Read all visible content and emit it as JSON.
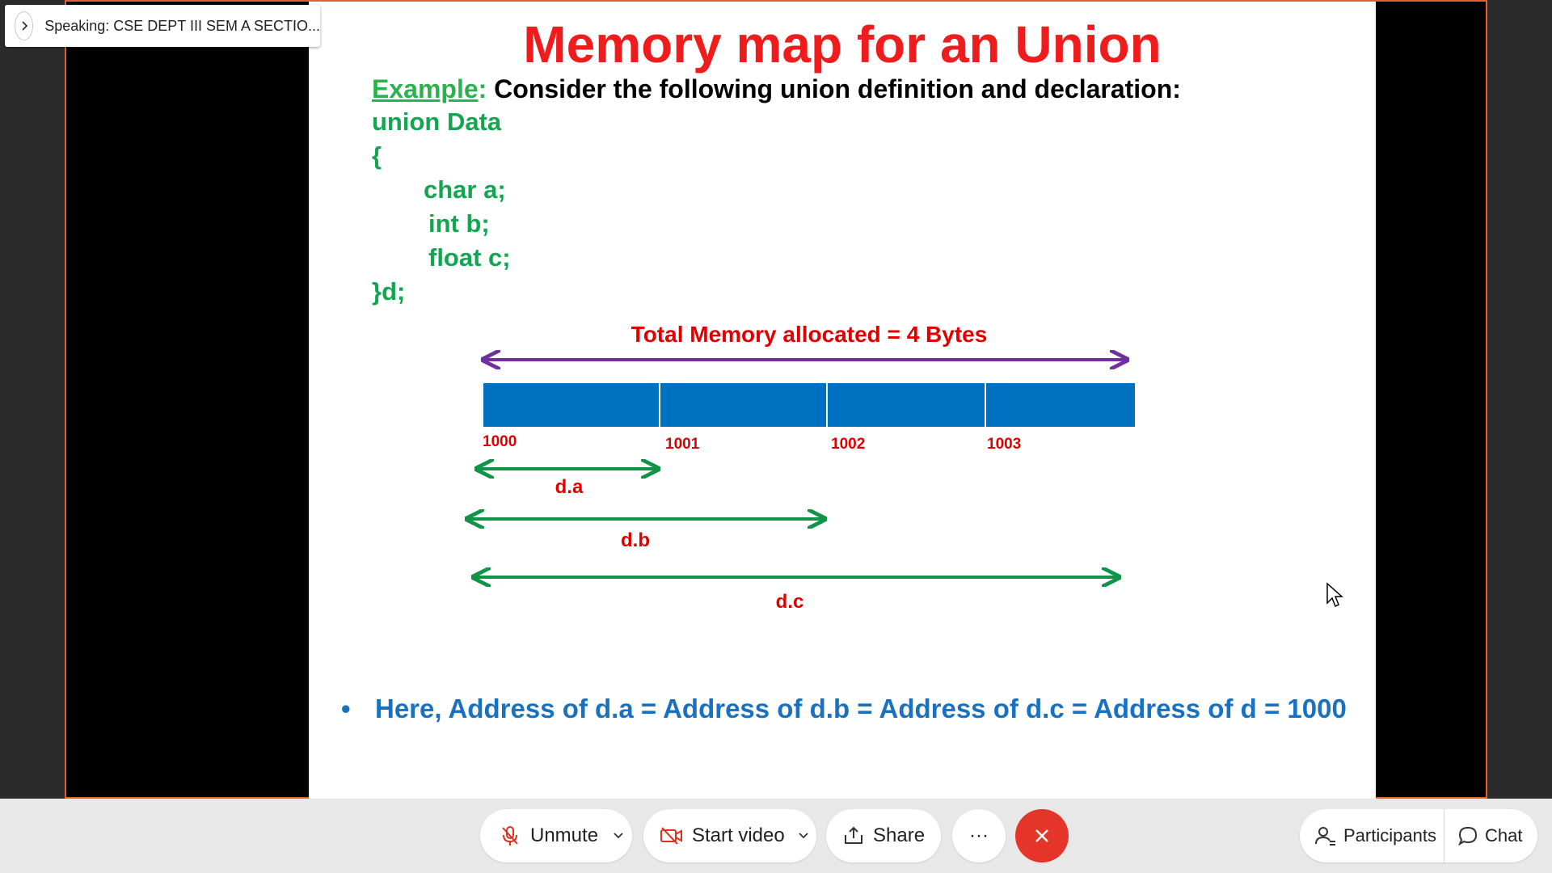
{
  "speaker": {
    "label": "Speaking: CSE DEPT III SEM A SECTIO..."
  },
  "slide": {
    "title": "Memory map for an Union",
    "example_word": "Example",
    "example_colon": ":",
    "example_text": " Consider the following union definition and declaration:",
    "code": [
      "union Data",
      "{",
      "char a;",
      "int b;",
      "float c;",
      "}d;"
    ],
    "diagram": {
      "total_label": "Total Memory allocated = 4 Bytes",
      "addresses": [
        "1000",
        "1001",
        "1002",
        "1003"
      ],
      "members": [
        "d.a",
        "d.b",
        "d.c"
      ]
    },
    "bullet": "Here, Address of d.a = Address of d.b = Address of d.c = Address of d  = 1000"
  },
  "colors": {
    "title_red": "#ee1c1c",
    "code_green": "#13a650",
    "block_blue": "#0070c0",
    "arrow_purple": "#7030a0",
    "arrow_green": "#119447",
    "bullet_blue": "#1971c2",
    "end_red": "#e5352b"
  },
  "controls": {
    "unmute": "Unmute",
    "start_video": "Start video",
    "share": "Share",
    "more": "···",
    "participants": "Participants",
    "chat": "Chat"
  },
  "icons": {
    "unmute": "microphone-muted-icon",
    "start_video": "camera-off-icon",
    "share": "share-icon",
    "participants": "participants-icon",
    "chat": "chat-icon",
    "end": "close-icon"
  }
}
